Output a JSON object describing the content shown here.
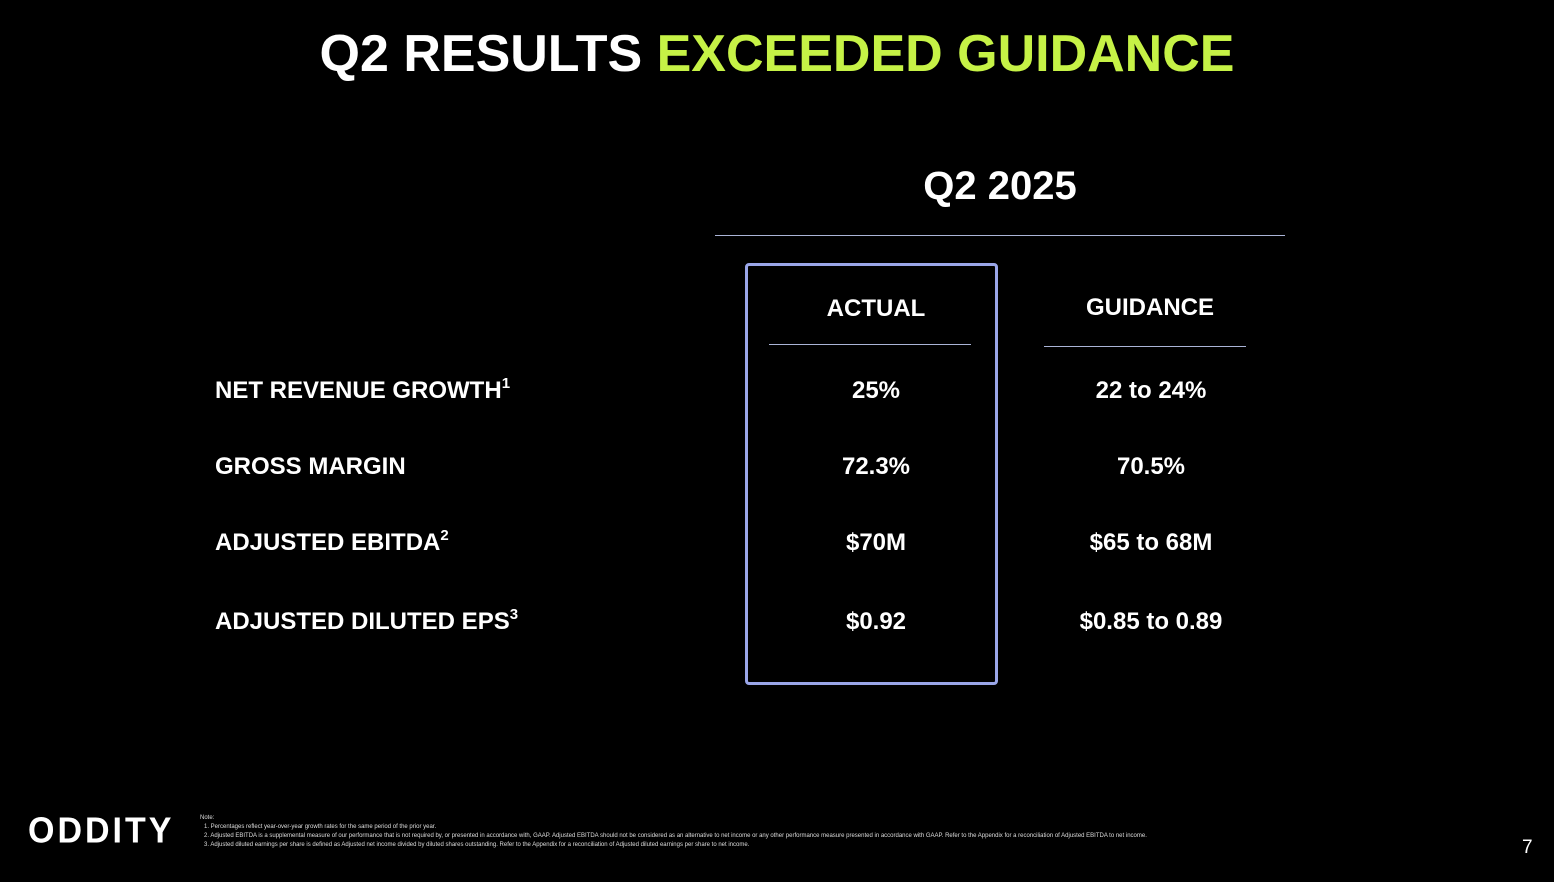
{
  "header": {
    "title_white": "Q2 RESULTS",
    "title_green": "EXCEEDED GUIDANCE"
  },
  "table": {
    "period": "Q2 2025",
    "columns": [
      "ACTUAL",
      "GUIDANCE"
    ],
    "rows": [
      {
        "label": "NET REVENUE GROWTH",
        "sup": "1",
        "actual": "25%",
        "guidance": "22 to 24%"
      },
      {
        "label": "GROSS MARGIN",
        "actual": "72.3%",
        "guidance": "70.5%"
      },
      {
        "label": "ADJUSTED EBITDA",
        "sup": "2",
        "actual": "$70M",
        "guidance": "$65 to 68M"
      },
      {
        "label": "ADJUSTED DILUTED EPS",
        "sup": "3",
        "actual": "$0.92",
        "guidance": "$0.85 to 0.89"
      }
    ]
  },
  "footer": {
    "logo": "ODDITY",
    "note_heading": "Note:",
    "notes": [
      "1.  Percentages reflect year-over-year growth rates for the same period of the prior year.",
      "2.  Adjusted EBITDA is a supplemental measure of our performance that is not required by, or presented in accordance with, GAAP. Adjusted EBITDA should not be considered as an alternative to net income or any other performance measure presented in accordance with GAAP. Refer to the Appendix for a reconciliation of Adjusted EBITDA to net income.",
      "3.  Adjusted diluted earnings per share is defined as Adjusted net income divided by diluted shares outstanding. Refer to the Appendix for a reconciliation of Adjusted diluted earnings per share to net income."
    ],
    "page": "7"
  }
}
